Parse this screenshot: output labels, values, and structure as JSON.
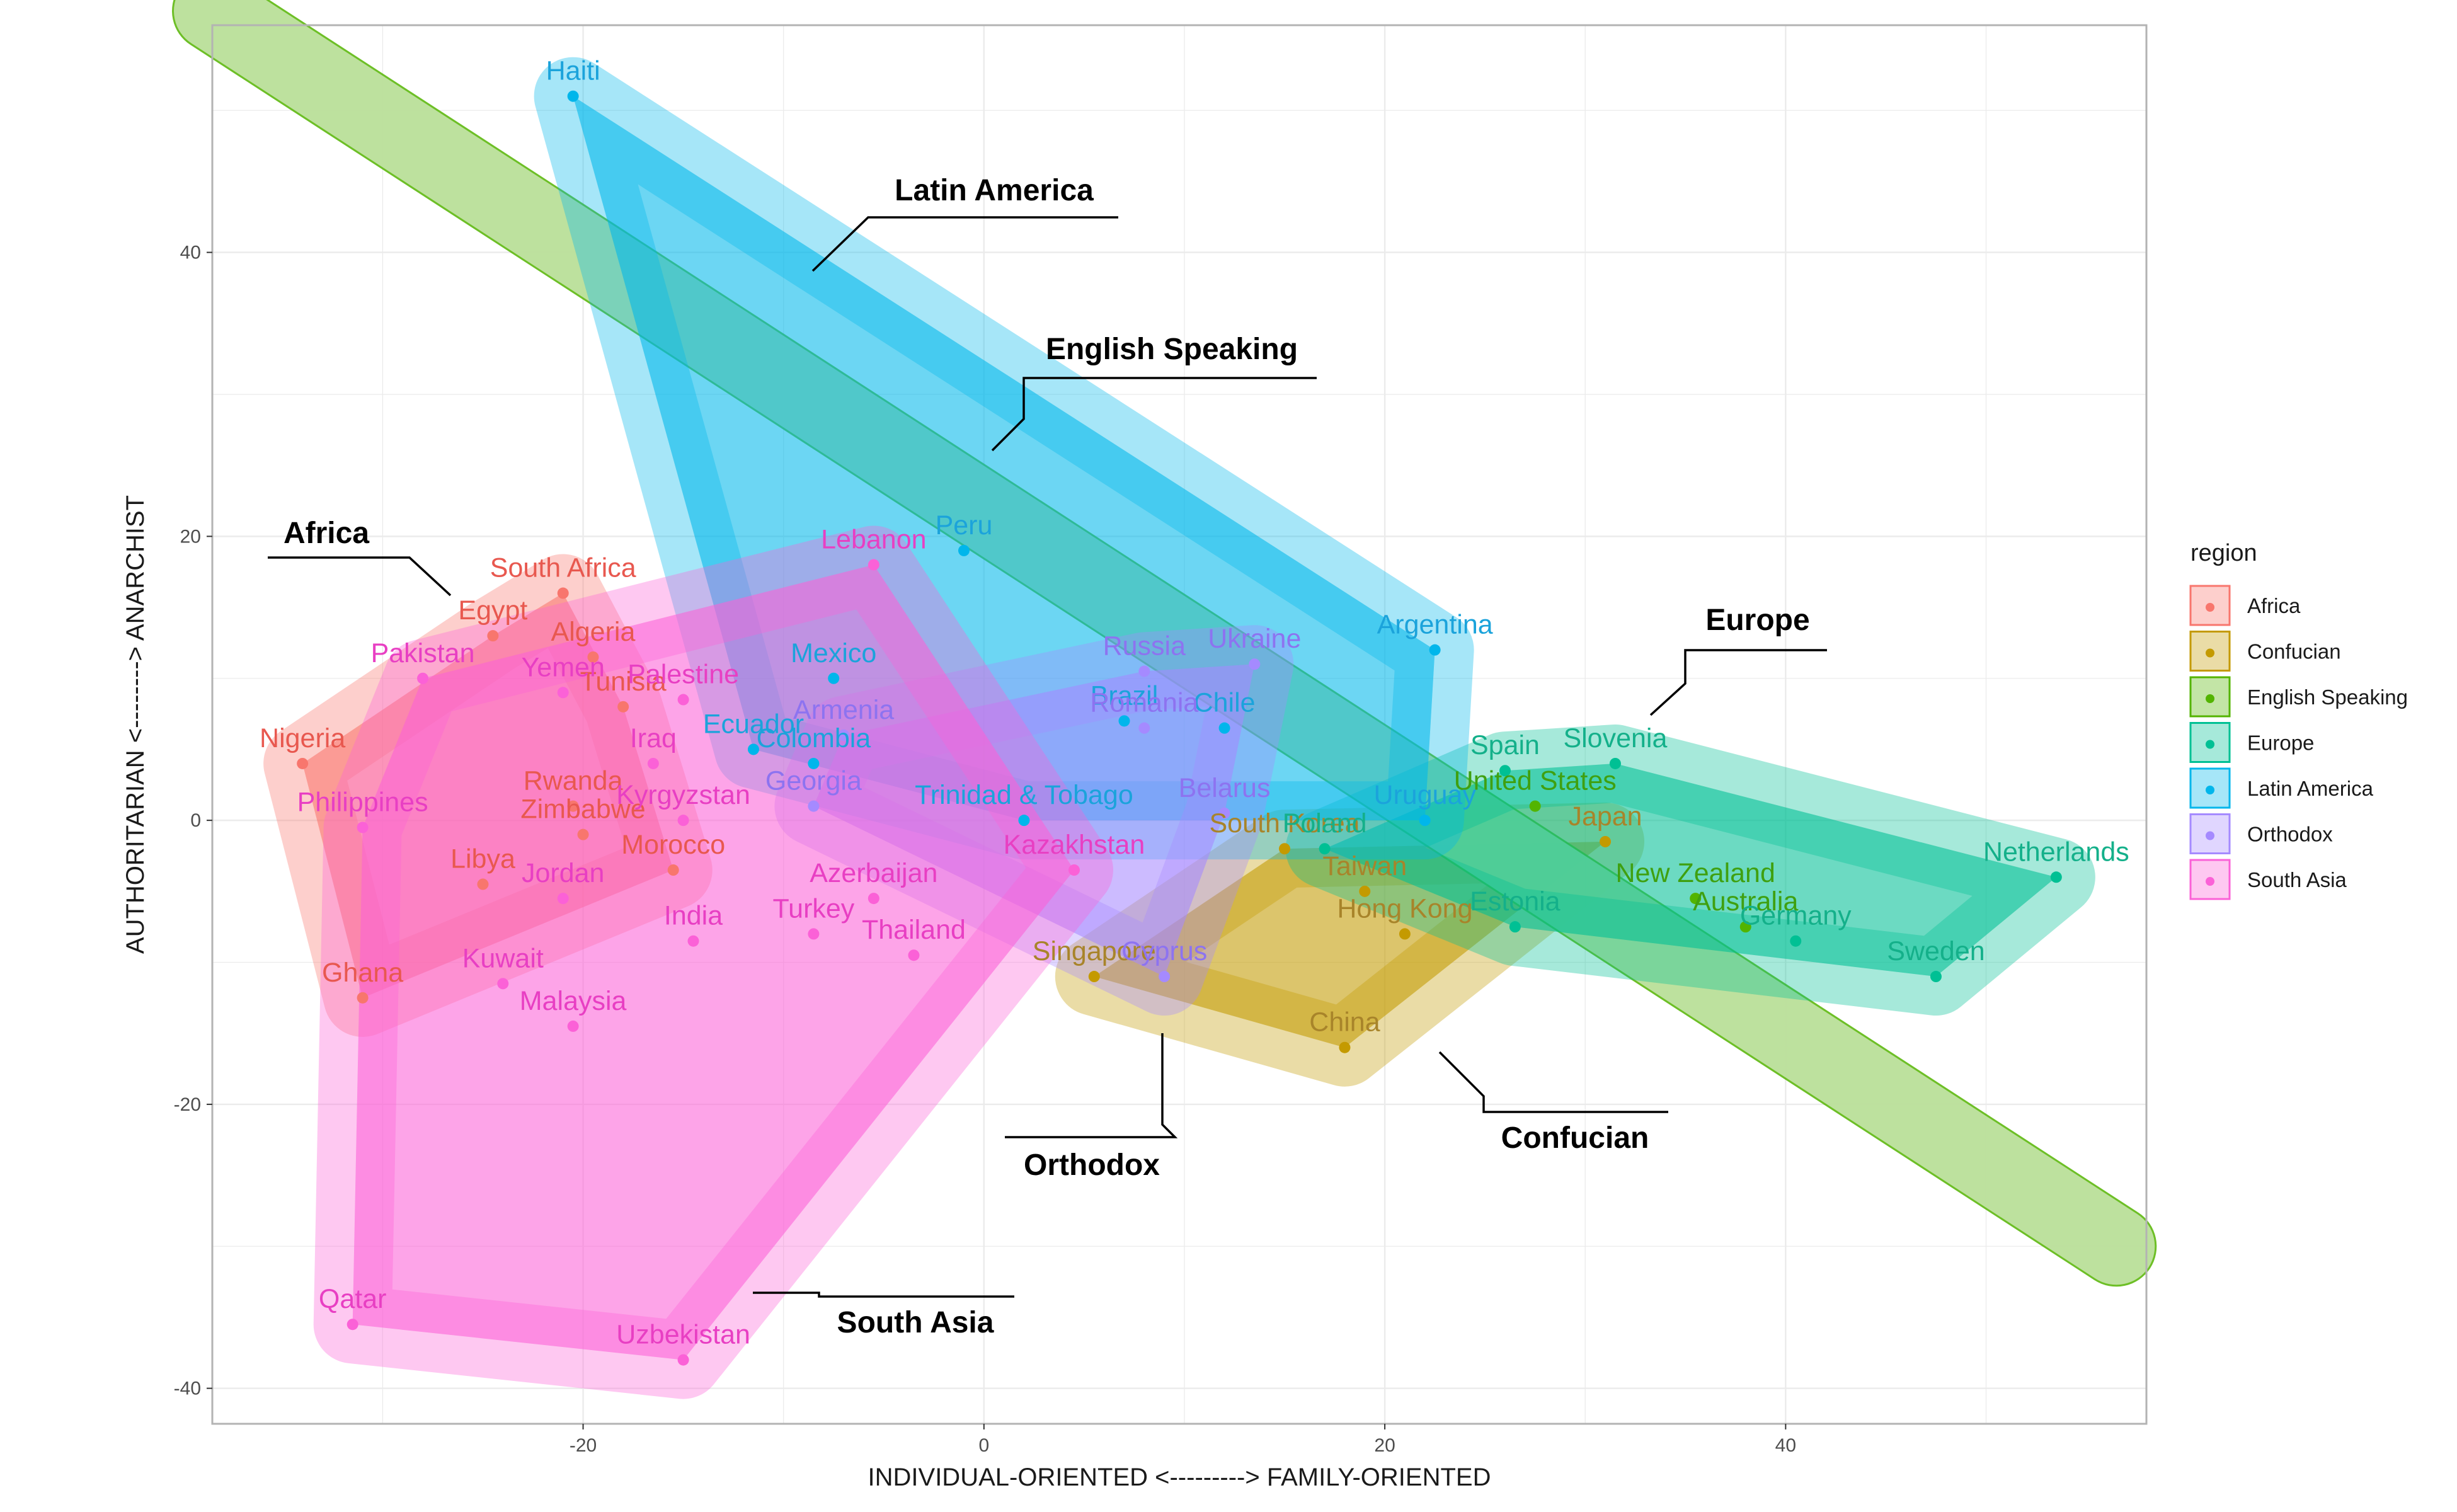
{
  "chart_data": {
    "type": "scatter",
    "xlabel": "INDIVIDUAL-ORIENTED <---------> FAMILY-ORIENTED",
    "ylabel": "AUTHORITARIAN <--------> ANARCHIST",
    "xlim": [
      -38.5,
      58
    ],
    "ylim": [
      -42.5,
      56
    ],
    "x_ticks": [
      -20,
      0,
      20,
      40
    ],
    "y_ticks": [
      -40,
      -20,
      0,
      20,
      40
    ],
    "grid": true,
    "legend": {
      "title": "region",
      "position": "right",
      "entries": [
        "Africa",
        "Confucian",
        "English Speaking",
        "Europe",
        "Latin America",
        "Orthodox",
        "South Asia"
      ]
    },
    "colors": {
      "Africa": "#F8766D",
      "Confucian": "#C49A00",
      "English Speaking": "#53B400",
      "Europe": "#00C094",
      "Latin America": "#00B6EB",
      "Orthodox": "#A58AFF",
      "South Asia": "#FB61D7"
    },
    "label_colors": {
      "Africa": "#E8584F",
      "Confucian": "#A8842A",
      "English Speaking": "#3FA010",
      "Europe": "#14B08A",
      "Latin America": "#1BA3DB",
      "Orthodox": "#8D73F0",
      "South Asia": "#E83FC3"
    },
    "series": [
      {
        "name": "Africa",
        "points": [
          {
            "label": "South Africa",
            "x": -21,
            "y": 16
          },
          {
            "label": "Egypt",
            "x": -24.5,
            "y": 13
          },
          {
            "label": "Algeria",
            "x": -19.5,
            "y": 11.5
          },
          {
            "label": "Tunisia",
            "x": -18,
            "y": 8
          },
          {
            "label": "Nigeria",
            "x": -34,
            "y": 4
          },
          {
            "label": "Rwanda",
            "x": -20.5,
            "y": 1
          },
          {
            "label": "Zimbabwe",
            "x": -20,
            "y": -1
          },
          {
            "label": "Libya",
            "x": -25,
            "y": -4.5
          },
          {
            "label": "Morocco",
            "x": -15.5,
            "y": -3.5
          },
          {
            "label": "Ghana",
            "x": -31,
            "y": -12.5
          }
        ]
      },
      {
        "name": "Confucian",
        "points": [
          {
            "label": "Japan",
            "x": 31,
            "y": -1.5
          },
          {
            "label": "South Korea",
            "x": 15,
            "y": -2
          },
          {
            "label": "Taiwan",
            "x": 19,
            "y": -5
          },
          {
            "label": "Hong Kong",
            "x": 21,
            "y": -8
          },
          {
            "label": "Singapore",
            "x": 5.5,
            "y": -11
          },
          {
            "label": "China",
            "x": 18,
            "y": -16
          }
        ]
      },
      {
        "name": "English Speaking",
        "points": [
          {
            "label": "United States",
            "x": 27.5,
            "y": 1
          },
          {
            "label": "New Zealand",
            "x": 35.5,
            "y": -5.5
          },
          {
            "label": "Australia",
            "x": 38,
            "y": -7.5
          }
        ]
      },
      {
        "name": "Europe",
        "points": [
          {
            "label": "Slovenia",
            "x": 31.5,
            "y": 4
          },
          {
            "label": "Spain",
            "x": 26,
            "y": 3.5
          },
          {
            "label": "Poland",
            "x": 17,
            "y": -2
          },
          {
            "label": "Estonia",
            "x": 26.5,
            "y": -7.5
          },
          {
            "label": "Germany",
            "x": 40.5,
            "y": -8.5
          },
          {
            "label": "Netherlands",
            "x": 53.5,
            "y": -4
          },
          {
            "label": "Sweden",
            "x": 47.5,
            "y": -11
          }
        ]
      },
      {
        "name": "Latin America",
        "points": [
          {
            "label": "Haiti",
            "x": -20.5,
            "y": 51
          },
          {
            "label": "Peru",
            "x": -1,
            "y": 19
          },
          {
            "label": "Mexico",
            "x": -7.5,
            "y": 10
          },
          {
            "label": "Argentina",
            "x": 22.5,
            "y": 12
          },
          {
            "label": "Brazil",
            "x": 7,
            "y": 7
          },
          {
            "label": "Chile",
            "x": 12,
            "y": 6.5
          },
          {
            "label": "Ecuador",
            "x": -11.5,
            "y": 5
          },
          {
            "label": "Colombia",
            "x": -8.5,
            "y": 4
          },
          {
            "label": "Uruguay",
            "x": 22,
            "y": 0
          },
          {
            "label": "Trinidad & Tobago",
            "x": 2,
            "y": 0
          }
        ]
      },
      {
        "name": "Orthodox",
        "points": [
          {
            "label": "Russia",
            "x": 8,
            "y": 10.5
          },
          {
            "label": "Ukraine",
            "x": 13.5,
            "y": 11
          },
          {
            "label": "Armenia",
            "x": -7,
            "y": 6
          },
          {
            "label": "Romania",
            "x": 8,
            "y": 6.5
          },
          {
            "label": "Belarus",
            "x": 12,
            "y": 0.5
          },
          {
            "label": "Georgia",
            "x": -8.5,
            "y": 1
          },
          {
            "label": "Cyprus",
            "x": 9,
            "y": -11
          }
        ]
      },
      {
        "name": "South Asia",
        "points": [
          {
            "label": "Lebanon",
            "x": -5.5,
            "y": 18
          },
          {
            "label": "Pakistan",
            "x": -28,
            "y": 10
          },
          {
            "label": "Yemen",
            "x": -21,
            "y": 9
          },
          {
            "label": "Palestine",
            "x": -15,
            "y": 8.5
          },
          {
            "label": "Iraq",
            "x": -16.5,
            "y": 4
          },
          {
            "label": "Philippines",
            "x": -31,
            "y": -0.5
          },
          {
            "label": "Kyrgyzstan",
            "x": -15,
            "y": 0
          },
          {
            "label": "Jordan",
            "x": -21,
            "y": -5.5
          },
          {
            "label": "Azerbaijan",
            "x": -5.5,
            "y": -5.5
          },
          {
            "label": "Kazakhstan",
            "x": 4.5,
            "y": -3.5
          },
          {
            "label": "India",
            "x": -14.5,
            "y": -8.5
          },
          {
            "label": "Turkey",
            "x": -8.5,
            "y": -8
          },
          {
            "label": "Thailand",
            "x": -3.5,
            "y": -9.5
          },
          {
            "label": "Kuwait",
            "x": -24,
            "y": -11.5
          },
          {
            "label": "Malaysia",
            "x": -20.5,
            "y": -14.5
          },
          {
            "label": "Qatar",
            "x": -31.5,
            "y": -35.5
          },
          {
            "label": "Uzbekistan",
            "x": -15,
            "y": -38
          }
        ]
      }
    ],
    "annotations": [
      {
        "text": "Latin America",
        "region": "Latin America"
      },
      {
        "text": "English Speaking",
        "region": "English Speaking"
      },
      {
        "text": "Africa",
        "region": "Africa"
      },
      {
        "text": "Europe",
        "region": "Europe"
      },
      {
        "text": "Orthodox",
        "region": "Orthodox"
      },
      {
        "text": "Confucian",
        "region": "Confucian"
      },
      {
        "text": "South Asia",
        "region": "South Asia"
      }
    ]
  }
}
